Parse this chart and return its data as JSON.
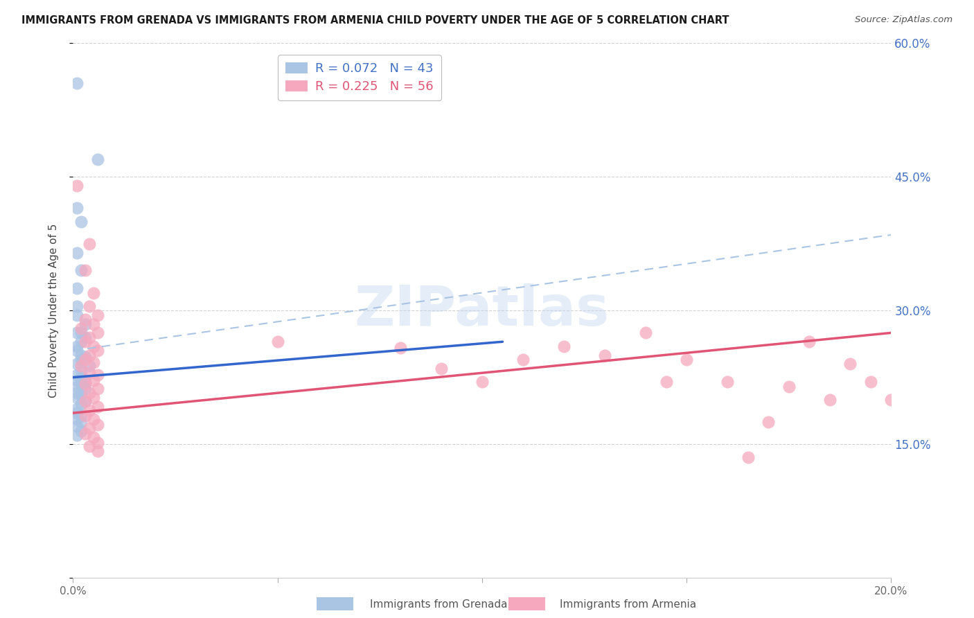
{
  "title": "IMMIGRANTS FROM GRENADA VS IMMIGRANTS FROM ARMENIA CHILD POVERTY UNDER THE AGE OF 5 CORRELATION CHART",
  "source": "Source: ZipAtlas.com",
  "ylabel": "Child Poverty Under the Age of 5",
  "xlim": [
    0.0,
    0.2
  ],
  "ylim": [
    0.0,
    0.6
  ],
  "xticks": [
    0.0,
    0.05,
    0.1,
    0.15,
    0.2
  ],
  "xtick_labels": [
    "0.0%",
    "",
    "",
    "",
    "20.0%"
  ],
  "yticks": [
    0.0,
    0.15,
    0.3,
    0.45,
    0.6
  ],
  "ytick_labels_right": [
    "",
    "15.0%",
    "30.0%",
    "45.0%",
    "60.0%"
  ],
  "grenada_R": "0.072",
  "grenada_N": "43",
  "armenia_R": "0.225",
  "armenia_N": "56",
  "grenada_color": "#aac4e4",
  "armenia_color": "#f5a8be",
  "grenada_line_color": "#3366cc",
  "armenia_line_color": "#e05575",
  "dashed_line_color": "#aac4e4",
  "watermark": "ZIPatlas",
  "legend_text_color_blue": "#4472c4",
  "legend_text_color_pink": "#e05575",
  "grenada_line_x": [
    0.0,
    0.105
  ],
  "grenada_line_y": [
    0.225,
    0.265
  ],
  "armenia_line_x": [
    0.0,
    0.2
  ],
  "armenia_line_y": [
    0.185,
    0.275
  ],
  "dashed_line_x": [
    0.0,
    0.2
  ],
  "dashed_line_y": [
    0.255,
    0.385
  ],
  "grenada_points": [
    [
      0.001,
      0.555
    ],
    [
      0.006,
      0.47
    ],
    [
      0.001,
      0.415
    ],
    [
      0.002,
      0.4
    ],
    [
      0.001,
      0.365
    ],
    [
      0.002,
      0.345
    ],
    [
      0.001,
      0.325
    ],
    [
      0.001,
      0.305
    ],
    [
      0.001,
      0.295
    ],
    [
      0.003,
      0.285
    ],
    [
      0.001,
      0.275
    ],
    [
      0.002,
      0.275
    ],
    [
      0.003,
      0.27
    ],
    [
      0.002,
      0.265
    ],
    [
      0.001,
      0.26
    ],
    [
      0.001,
      0.255
    ],
    [
      0.002,
      0.25
    ],
    [
      0.003,
      0.248
    ],
    [
      0.002,
      0.245
    ],
    [
      0.001,
      0.24
    ],
    [
      0.004,
      0.238
    ],
    [
      0.002,
      0.232
    ],
    [
      0.001,
      0.228
    ],
    [
      0.002,
      0.225
    ],
    [
      0.001,
      0.222
    ],
    [
      0.003,
      0.22
    ],
    [
      0.002,
      0.218
    ],
    [
      0.001,
      0.215
    ],
    [
      0.003,
      0.212
    ],
    [
      0.002,
      0.21
    ],
    [
      0.001,
      0.208
    ],
    [
      0.002,
      0.205
    ],
    [
      0.001,
      0.202
    ],
    [
      0.003,
      0.198
    ],
    [
      0.002,
      0.195
    ],
    [
      0.001,
      0.19
    ],
    [
      0.001,
      0.185
    ],
    [
      0.002,
      0.182
    ],
    [
      0.001,
      0.178
    ],
    [
      0.002,
      0.175
    ],
    [
      0.001,
      0.17
    ],
    [
      0.002,
      0.165
    ],
    [
      0.001,
      0.16
    ]
  ],
  "armenia_points": [
    [
      0.001,
      0.44
    ],
    [
      0.004,
      0.375
    ],
    [
      0.003,
      0.345
    ],
    [
      0.005,
      0.32
    ],
    [
      0.004,
      0.305
    ],
    [
      0.006,
      0.295
    ],
    [
      0.003,
      0.29
    ],
    [
      0.005,
      0.285
    ],
    [
      0.002,
      0.28
    ],
    [
      0.006,
      0.275
    ],
    [
      0.004,
      0.27
    ],
    [
      0.003,
      0.265
    ],
    [
      0.005,
      0.26
    ],
    [
      0.006,
      0.255
    ],
    [
      0.004,
      0.25
    ],
    [
      0.003,
      0.245
    ],
    [
      0.005,
      0.242
    ],
    [
      0.002,
      0.238
    ],
    [
      0.004,
      0.23
    ],
    [
      0.006,
      0.228
    ],
    [
      0.005,
      0.222
    ],
    [
      0.003,
      0.218
    ],
    [
      0.006,
      0.212
    ],
    [
      0.004,
      0.208
    ],
    [
      0.005,
      0.202
    ],
    [
      0.003,
      0.198
    ],
    [
      0.006,
      0.192
    ],
    [
      0.004,
      0.188
    ],
    [
      0.003,
      0.182
    ],
    [
      0.005,
      0.178
    ],
    [
      0.006,
      0.172
    ],
    [
      0.004,
      0.168
    ],
    [
      0.003,
      0.162
    ],
    [
      0.005,
      0.158
    ],
    [
      0.006,
      0.152
    ],
    [
      0.004,
      0.148
    ],
    [
      0.006,
      0.142
    ],
    [
      0.05,
      0.265
    ],
    [
      0.08,
      0.258
    ],
    [
      0.09,
      0.235
    ],
    [
      0.1,
      0.22
    ],
    [
      0.11,
      0.245
    ],
    [
      0.12,
      0.26
    ],
    [
      0.13,
      0.25
    ],
    [
      0.14,
      0.275
    ],
    [
      0.145,
      0.22
    ],
    [
      0.15,
      0.245
    ],
    [
      0.16,
      0.22
    ],
    [
      0.165,
      0.135
    ],
    [
      0.17,
      0.175
    ],
    [
      0.175,
      0.215
    ],
    [
      0.18,
      0.265
    ],
    [
      0.185,
      0.2
    ],
    [
      0.19,
      0.24
    ],
    [
      0.195,
      0.22
    ],
    [
      0.2,
      0.2
    ]
  ]
}
